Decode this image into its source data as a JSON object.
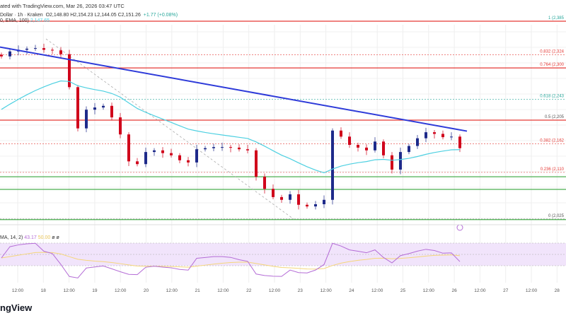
{
  "header": {
    "published": "ated with TradingView.com, Mar 26, 2026 03:47 UTC",
    "symbol": "Dollar · 1h · Kraken",
    "ohlc": "O2,148.80  H2,154.23  L2,144.05  C2,151.26",
    "change": "+1.77 (+0.08%)",
    "ema_label": "0, EMA, 100)",
    "ema_value": "2,147.65"
  },
  "rsi": {
    "label": "MA, 14, 2)",
    "value": "43.17",
    "ma_value": "50.00",
    "extra": "ø ø"
  },
  "logo": "ngView",
  "colors": {
    "up": "#1e2a8a",
    "down": "#d0021b",
    "ema": "#4dd0e1",
    "trend": "#2e3bd9",
    "rsi": "#b46cd6",
    "rsi_ma": "#f5d67a",
    "fib_red": "#e53935",
    "fib_green": "#26a69a",
    "support": "#4caf50"
  },
  "chart_data": {
    "type": "candlestick",
    "interval": "1h (shown)",
    "closes": [
      2321,
      2330,
      2333,
      2335,
      2336,
      2333,
      2332,
      2325,
      2265,
      2190,
      2224,
      2228,
      2231,
      2210,
      2179,
      2130,
      2125,
      2147,
      2150,
      2145,
      2141,
      2132,
      2128,
      2152,
      2154,
      2156,
      2156,
      2155,
      2152,
      2150,
      2102,
      2080,
      2065,
      2060,
      2070,
      2051,
      2048,
      2052,
      2060,
      2186,
      2175,
      2160,
      2155,
      2150,
      2166,
      2141,
      2115,
      2147,
      2158,
      2172,
      2183,
      2180,
      2174,
      2175,
      2154
    ],
    "ylim": [
      2025,
      2385
    ],
    "fib_levels": [
      {
        "label": "1 (2,385",
        "price": 2385,
        "color": "#26a69a"
      },
      {
        "label": "0.832 (2,324",
        "price": 2324,
        "color": "#e53935"
      },
      {
        "label": "0.764 (2,300",
        "price": 2300,
        "color": "#e53935"
      },
      {
        "label": "0.618 (2,243",
        "price": 2243,
        "color": "#26a69a"
      },
      {
        "label": "0.5 (2,205",
        "price": 2205,
        "color": "#555555"
      },
      {
        "label": "0.382 (2,162",
        "price": 2162,
        "color": "#e53935"
      },
      {
        "label": "0.236 (2,110",
        "price": 2110,
        "color": "#e53935"
      },
      {
        "label": "0 (2,025",
        "price": 2025,
        "color": "#555555"
      }
    ],
    "red_lines": [
      2385,
      2300,
      2205
    ],
    "green_lines": [
      2102,
      2079,
      2024
    ],
    "trend_line": [
      [
        0,
        2338
      ],
      [
        660,
        2185
      ]
    ],
    "x_ticks": [
      "12:00",
      "18",
      "12:00",
      "19",
      "12:00",
      "20",
      "12:00",
      "21",
      "12:00",
      "22",
      "12:00",
      "23",
      "12:00",
      "24",
      "12:00",
      "25",
      "12:00",
      "26",
      "12:00",
      "27",
      "12:00",
      "28"
    ]
  }
}
